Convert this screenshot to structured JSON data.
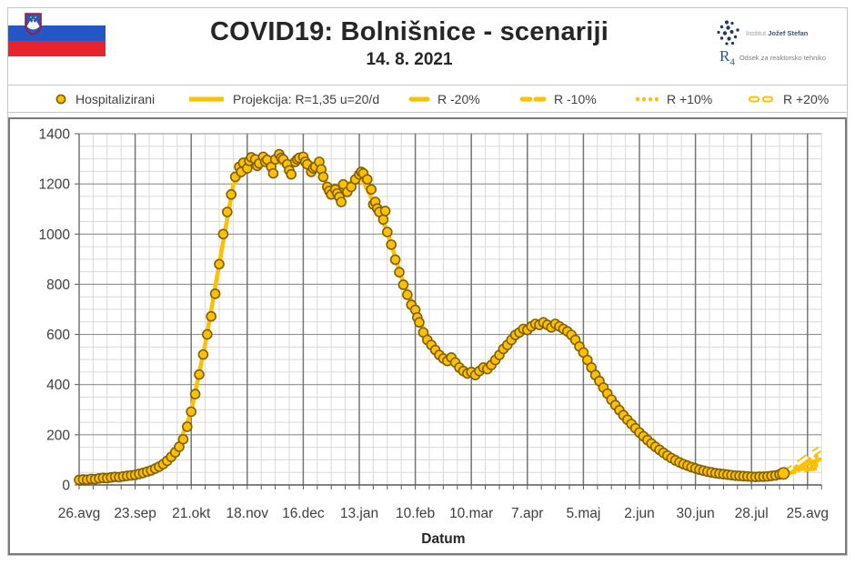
{
  "header": {
    "title": "COVID19: Bolnišnice - scenariji",
    "date": "14. 8. 2021",
    "flag": {
      "country": "Slovenia",
      "white": "#FFFFFF",
      "blue": "#2457C5",
      "red": "#E8232D"
    },
    "logo": {
      "institute_prefix": "Institut",
      "institute_name": "Jožef Stefan",
      "r4": "R",
      "r4_sub": "4",
      "department": "Odsek za reaktorsko tehniko"
    }
  },
  "legend": {
    "items": [
      {
        "label": "Hospitalizirani",
        "marker": "circle"
      },
      {
        "label": "Projekcija: R=1,35 u=20/d",
        "marker": "solid-line"
      },
      {
        "label": "R -20%",
        "marker": "long-dash"
      },
      {
        "label": "R -10%",
        "marker": "dash"
      },
      {
        "label": "R +10%",
        "marker": "dot"
      },
      {
        "label": "R +20%",
        "marker": "hollow-dash"
      }
    ]
  },
  "chart_data": {
    "type": "scatter",
    "title": "COVID19: Bolnišnice - scenariji",
    "subtitle": "14. 8. 2021",
    "xlabel": "Datum",
    "ylabel": "",
    "ylim": [
      0,
      1400
    ],
    "y_ticks": [
      0,
      200,
      400,
      600,
      800,
      1000,
      1200,
      1400
    ],
    "x_tick_labels": [
      "26.avg",
      "23.sep",
      "21.okt",
      "18.nov",
      "16.dec",
      "13.jan",
      "10.feb",
      "10.mar",
      "7.apr",
      "5.maj",
      "2.jun",
      "30.jun",
      "28.jul",
      "25.avg"
    ],
    "x_tick_interval_days": 28,
    "x_total_days": 371,
    "grid": {
      "minor_x_days": 7,
      "minor_y_units": 50,
      "major_x_days": 28,
      "major_y_units": 200
    },
    "colors": {
      "marker_fill": "#FFC000",
      "marker_stroke": "#7F6000",
      "line": "#FFC000",
      "grid_minor": "#D9D9D9",
      "grid_major": "#8F8F8F",
      "axis": "#595959",
      "label": "#3F3F3F"
    },
    "series_hospitalizirani": {
      "name": "Hospitalizirani",
      "points": [
        [
          0,
          20
        ],
        [
          2,
          22
        ],
        [
          4,
          21
        ],
        [
          6,
          24
        ],
        [
          8,
          23
        ],
        [
          10,
          26
        ],
        [
          12,
          28
        ],
        [
          14,
          27
        ],
        [
          16,
          30
        ],
        [
          18,
          32
        ],
        [
          20,
          31
        ],
        [
          22,
          34
        ],
        [
          24,
          36
        ],
        [
          26,
          38
        ],
        [
          28,
          40
        ],
        [
          30,
          44
        ],
        [
          32,
          48
        ],
        [
          34,
          53
        ],
        [
          36,
          58
        ],
        [
          38,
          65
        ],
        [
          40,
          73
        ],
        [
          42,
          83
        ],
        [
          44,
          96
        ],
        [
          46,
          112
        ],
        [
          48,
          130
        ],
        [
          50,
          152
        ],
        [
          52,
          182
        ],
        [
          54,
          232
        ],
        [
          56,
          292
        ],
        [
          58,
          362
        ],
        [
          60,
          440
        ],
        [
          62,
          520
        ],
        [
          64,
          600
        ],
        [
          66,
          672
        ],
        [
          68,
          762
        ],
        [
          70,
          880
        ],
        [
          72,
          1000
        ],
        [
          74,
          1088
        ],
        [
          76,
          1158
        ],
        [
          78,
          1228
        ],
        [
          80,
          1268
        ],
        [
          81,
          1248
        ],
        [
          82,
          1284
        ],
        [
          84,
          1262
        ],
        [
          85,
          1292
        ],
        [
          86,
          1306
        ],
        [
          88,
          1298
        ],
        [
          89,
          1272
        ],
        [
          90,
          1282
        ],
        [
          92,
          1308
        ],
        [
          93,
          1288
        ],
        [
          94,
          1296
        ],
        [
          96,
          1268
        ],
        [
          97,
          1242
        ],
        [
          98,
          1298
        ],
        [
          100,
          1318
        ],
        [
          101,
          1304
        ],
        [
          102,
          1298
        ],
        [
          104,
          1278
        ],
        [
          105,
          1254
        ],
        [
          106,
          1238
        ],
        [
          108,
          1288
        ],
        [
          109,
          1298
        ],
        [
          110,
          1304
        ],
        [
          112,
          1308
        ],
        [
          113,
          1288
        ],
        [
          114,
          1278
        ],
        [
          116,
          1248
        ],
        [
          117,
          1262
        ],
        [
          118,
          1268
        ],
        [
          120,
          1288
        ],
        [
          121,
          1258
        ],
        [
          122,
          1228
        ],
        [
          124,
          1188
        ],
        [
          125,
          1172
        ],
        [
          126,
          1158
        ],
        [
          128,
          1178
        ],
        [
          129,
          1162
        ],
        [
          130,
          1148
        ],
        [
          131,
          1128
        ],
        [
          132,
          1198
        ],
        [
          134,
          1168
        ],
        [
          136,
          1188
        ],
        [
          138,
          1218
        ],
        [
          140,
          1238
        ],
        [
          141,
          1248
        ],
        [
          142,
          1242
        ],
        [
          144,
          1218
        ],
        [
          146,
          1178
        ],
        [
          147,
          1118
        ],
        [
          148,
          1128
        ],
        [
          149,
          1102
        ],
        [
          150,
          1088
        ],
        [
          152,
          1058
        ],
        [
          153,
          1092
        ],
        [
          154,
          1008
        ],
        [
          156,
          958
        ],
        [
          158,
          898
        ],
        [
          160,
          848
        ],
        [
          162,
          798
        ],
        [
          164,
          758
        ],
        [
          166,
          718
        ],
        [
          168,
          698
        ],
        [
          169,
          668
        ],
        [
          170,
          648
        ],
        [
          172,
          608
        ],
        [
          174,
          578
        ],
        [
          176,
          558
        ],
        [
          178,
          538
        ],
        [
          180,
          518
        ],
        [
          182,
          504
        ],
        [
          184,
          494
        ],
        [
          186,
          508
        ],
        [
          188,
          488
        ],
        [
          190,
          468
        ],
        [
          192,
          454
        ],
        [
          194,
          444
        ],
        [
          196,
          450
        ],
        [
          198,
          438
        ],
        [
          200,
          454
        ],
        [
          202,
          468
        ],
        [
          204,
          462
        ],
        [
          206,
          478
        ],
        [
          208,
          498
        ],
        [
          210,
          518
        ],
        [
          212,
          542
        ],
        [
          214,
          558
        ],
        [
          216,
          578
        ],
        [
          218,
          598
        ],
        [
          220,
          608
        ],
        [
          222,
          622
        ],
        [
          224,
          618
        ],
        [
          226,
          632
        ],
        [
          228,
          642
        ],
        [
          230,
          638
        ],
        [
          232,
          648
        ],
        [
          234,
          638
        ],
        [
          236,
          628
        ],
        [
          238,
          642
        ],
        [
          240,
          632
        ],
        [
          242,
          622
        ],
        [
          244,
          612
        ],
        [
          246,
          598
        ],
        [
          248,
          578
        ],
        [
          250,
          552
        ],
        [
          252,
          528
        ],
        [
          254,
          498
        ],
        [
          256,
          468
        ],
        [
          258,
          438
        ],
        [
          260,
          414
        ],
        [
          262,
          388
        ],
        [
          264,
          364
        ],
        [
          266,
          340
        ],
        [
          268,
          318
        ],
        [
          270,
          298
        ],
        [
          272,
          278
        ],
        [
          274,
          260
        ],
        [
          276,
          243
        ],
        [
          278,
          226
        ],
        [
          280,
          209
        ],
        [
          282,
          194
        ],
        [
          284,
          179
        ],
        [
          286,
          165
        ],
        [
          288,
          152
        ],
        [
          290,
          140
        ],
        [
          292,
          128
        ],
        [
          294,
          117
        ],
        [
          296,
          107
        ],
        [
          298,
          98
        ],
        [
          300,
          90
        ],
        [
          302,
          83
        ],
        [
          304,
          77
        ],
        [
          306,
          71
        ],
        [
          308,
          66
        ],
        [
          310,
          61
        ],
        [
          312,
          57
        ],
        [
          314,
          53
        ],
        [
          316,
          50
        ],
        [
          318,
          47
        ],
        [
          320,
          45
        ],
        [
          322,
          43
        ],
        [
          324,
          41
        ],
        [
          326,
          39
        ],
        [
          328,
          37
        ],
        [
          330,
          36
        ],
        [
          332,
          35
        ],
        [
          334,
          34
        ],
        [
          336,
          33
        ],
        [
          338,
          32
        ],
        [
          340,
          33
        ],
        [
          342,
          33
        ],
        [
          344,
          34
        ],
        [
          346,
          36
        ],
        [
          348,
          38
        ],
        [
          350,
          42
        ],
        [
          352,
          46
        ]
      ]
    },
    "projection": {
      "name": "Projekcija: R=1,35 u=20/d",
      "points": [
        [
          0,
          21
        ],
        [
          7,
          24
        ],
        [
          14,
          28
        ],
        [
          21,
          33
        ],
        [
          28,
          41
        ],
        [
          35,
          56
        ],
        [
          42,
          84
        ],
        [
          49,
          142
        ],
        [
          56,
          292
        ],
        [
          63,
          560
        ],
        [
          70,
          880
        ],
        [
          77,
          1195
        ],
        [
          84,
          1268
        ],
        [
          91,
          1292
        ],
        [
          98,
          1296
        ],
        [
          105,
          1262
        ],
        [
          112,
          1300
        ],
        [
          119,
          1272
        ],
        [
          126,
          1162
        ],
        [
          133,
          1186
        ],
        [
          140,
          1240
        ],
        [
          147,
          1130
        ],
        [
          154,
          1012
        ],
        [
          161,
          828
        ],
        [
          168,
          700
        ],
        [
          175,
          566
        ],
        [
          182,
          506
        ],
        [
          189,
          478
        ],
        [
          196,
          448
        ],
        [
          203,
          468
        ],
        [
          210,
          520
        ],
        [
          217,
          588
        ],
        [
          224,
          622
        ],
        [
          231,
          644
        ],
        [
          238,
          640
        ],
        [
          245,
          606
        ],
        [
          252,
          528
        ],
        [
          259,
          430
        ],
        [
          266,
          340
        ],
        [
          273,
          266
        ],
        [
          280,
          208
        ],
        [
          287,
          158
        ],
        [
          294,
          117
        ],
        [
          301,
          86
        ],
        [
          308,
          65
        ],
        [
          315,
          51
        ],
        [
          322,
          43
        ],
        [
          329,
          36
        ],
        [
          336,
          33
        ],
        [
          343,
          34
        ],
        [
          350,
          42
        ],
        [
          352,
          46
        ],
        [
          358,
          64
        ],
        [
          364,
          84
        ],
        [
          370,
          102
        ]
      ]
    },
    "scenarios": [
      {
        "name": "R -20%",
        "style": "long-dash",
        "points": [
          [
            352,
            46
          ],
          [
            358,
            54
          ],
          [
            364,
            62
          ],
          [
            370,
            68
          ]
        ]
      },
      {
        "name": "R -10%",
        "style": "dash",
        "points": [
          [
            352,
            46
          ],
          [
            358,
            58
          ],
          [
            364,
            72
          ],
          [
            370,
            82
          ]
        ]
      },
      {
        "name": "R +10%",
        "style": "dot",
        "points": [
          [
            352,
            46
          ],
          [
            358,
            70
          ],
          [
            364,
            98
          ],
          [
            370,
            122
          ]
        ]
      },
      {
        "name": "R +20%",
        "style": "hollow-dash",
        "points": [
          [
            352,
            46
          ],
          [
            358,
            76
          ],
          [
            364,
            112
          ],
          [
            370,
            142
          ]
        ]
      }
    ]
  }
}
